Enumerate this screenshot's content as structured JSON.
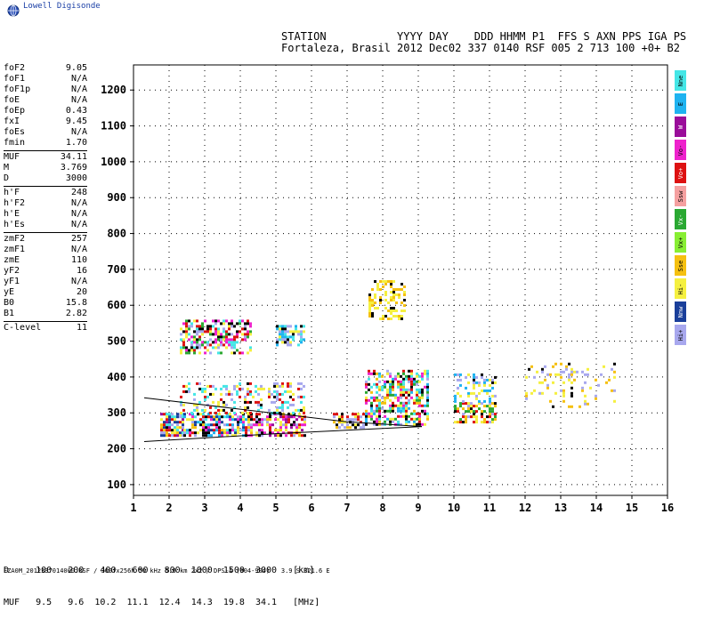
{
  "brand": "Lowell Digisonde",
  "header": {
    "line1": "STATION           YYYY DAY    DDD HHMM P1  FFS S AXN PPS IGA PS",
    "line2": "Fortaleza, Brasil 2012 Dec02 337 0140 RSF 005 2 713 100 +0+ B2"
  },
  "params": [
    {
      "group": [
        {
          "name": "foF2",
          "value": "9.05"
        },
        {
          "name": "foF1",
          "value": "N/A"
        },
        {
          "name": "foF1p",
          "value": "N/A"
        },
        {
          "name": "foE",
          "value": "N/A"
        },
        {
          "name": "foEp",
          "value": "0.43"
        },
        {
          "name": "fxI",
          "value": "9.45"
        },
        {
          "name": "foEs",
          "value": "N/A"
        },
        {
          "name": "fmin",
          "value": "1.70"
        }
      ]
    },
    {
      "group": [
        {
          "name": "MUF",
          "value": "34.11"
        },
        {
          "name": "M",
          "value": "3.769"
        },
        {
          "name": "D",
          "value": "3000"
        }
      ]
    },
    {
      "group": [
        {
          "name": "h'F",
          "value": "248"
        },
        {
          "name": "h'F2",
          "value": "N/A"
        },
        {
          "name": "h'E",
          "value": "N/A"
        },
        {
          "name": "h'Es",
          "value": "N/A"
        }
      ]
    },
    {
      "group": [
        {
          "name": "zmF2",
          "value": "257"
        },
        {
          "name": "zmF1",
          "value": "N/A"
        },
        {
          "name": "zmE",
          "value": "110"
        },
        {
          "name": "yF2",
          "value": "16"
        },
        {
          "name": "yF1",
          "value": "N/A"
        },
        {
          "name": "yE",
          "value": "20"
        },
        {
          "name": "B0",
          "value": "15.8"
        },
        {
          "name": "B1",
          "value": "2.82"
        }
      ]
    },
    {
      "group": [
        {
          "name": "C-level",
          "value": "11"
        }
      ]
    }
  ],
  "legend": [
    {
      "label": "Nne",
      "color": "#44e6e6"
    },
    {
      "label": "E",
      "color": "#1fb3f0"
    },
    {
      "label": "W",
      "color": "#9a0d9a"
    },
    {
      "label": "Vo-",
      "color": "#ee22cc"
    },
    {
      "label": "Vo+",
      "color": "#dd1111"
    },
    {
      "label": "Ssw",
      "color": "#f5a0a0"
    },
    {
      "label": "Vx-",
      "color": "#2aa832"
    },
    {
      "label": "Vx+",
      "color": "#88ee33"
    },
    {
      "label": "Sse",
      "color": "#f5c010"
    },
    {
      "label": "Hi-",
      "color": "#f5f040"
    },
    {
      "label": "Nnw",
      "color": "#1a3f9a"
    },
    {
      "label": "Hi+",
      "color": "#a8a8ee"
    }
  ],
  "dmuf": {
    "line1": "D     100   200   400   600   800  1000  1500  3000   [km]",
    "line2": "MUF   9.5   9.6  10.2  11.1  12.4  14.3  19.8  34.1   [MHz]"
  },
  "footer": "FZA0M_2012337014000.RSF / 300fx256h 50 kHz 5.0 km 2x2 / DPS-4 (904-904)   3.9 S 321.6 E",
  "chart_data": {
    "type": "scatter",
    "x_ticks": [
      1,
      2,
      3,
      4,
      5,
      6,
      7,
      8,
      9,
      10,
      11,
      12,
      13,
      14,
      15,
      16
    ],
    "y_ticks": [
      100,
      200,
      300,
      400,
      500,
      600,
      700,
      800,
      900,
      1000,
      1100,
      1200
    ],
    "xlim": [
      1,
      16
    ],
    "ylim": [
      70,
      1270
    ],
    "grid": true,
    "clusters": [
      {
        "f": [
          1.75,
          2.4
        ],
        "h": [
          240,
          300
        ],
        "density": 0.8,
        "colors": [
          0,
          4,
          2,
          10,
          9,
          8,
          11
        ]
      },
      {
        "f": [
          2.4,
          4.2
        ],
        "h": [
          235,
          300
        ],
        "density": 0.7,
        "colors": [
          4,
          0,
          3,
          10,
          8,
          9,
          11,
          1
        ]
      },
      {
        "f": [
          4.2,
          5.8
        ],
        "h": [
          240,
          300
        ],
        "density": 0.6,
        "colors": [
          4,
          11,
          8,
          3,
          9,
          2
        ]
      },
      {
        "f": [
          6.6,
          7.5
        ],
        "h": [
          260,
          300
        ],
        "density": 0.6,
        "colors": [
          4,
          9,
          8,
          11
        ]
      },
      {
        "f": [
          7.5,
          9.3
        ],
        "h": [
          270,
          420
        ],
        "density": 0.55,
        "colors": [
          9,
          8,
          11,
          3,
          4,
          6,
          0,
          1
        ]
      },
      {
        "f": [
          2.3,
          5.8
        ],
        "h": [
          300,
          385
        ],
        "density": 0.3,
        "colors": [
          11,
          9,
          4,
          0
        ]
      },
      {
        "f": [
          10.0,
          11.2
        ],
        "h": [
          275,
          330
        ],
        "density": 0.6,
        "colors": [
          4,
          9,
          8,
          11,
          6
        ]
      },
      {
        "f": [
          10.0,
          11.2
        ],
        "h": [
          330,
          410
        ],
        "density": 0.3,
        "colors": [
          11,
          9,
          1
        ]
      },
      {
        "f": [
          7.6,
          8.6
        ],
        "h": [
          560,
          670
        ],
        "density": 0.4,
        "colors": [
          9,
          8
        ]
      },
      {
        "f": [
          2.3,
          4.3
        ],
        "h": [
          470,
          560
        ],
        "density": 0.5,
        "colors": [
          9,
          0,
          6,
          4,
          3,
          11
        ]
      },
      {
        "f": [
          5.0,
          5.8
        ],
        "h": [
          490,
          545
        ],
        "density": 0.55,
        "colors": [
          0,
          9,
          1,
          11
        ]
      },
      {
        "f": [
          12.0,
          14.5
        ],
        "h": [
          320,
          440
        ],
        "density": 0.15,
        "colors": [
          11,
          9,
          8
        ]
      }
    ],
    "traces": [
      {
        "name": "",
        "points": [
          [
            1.3,
            342
          ],
          [
            7.0,
            275
          ],
          [
            9.1,
            262
          ]
        ]
      },
      {
        "name": "",
        "points": [
          [
            1.3,
            220
          ],
          [
            5.0,
            242
          ],
          [
            9.1,
            262
          ]
        ]
      }
    ]
  }
}
